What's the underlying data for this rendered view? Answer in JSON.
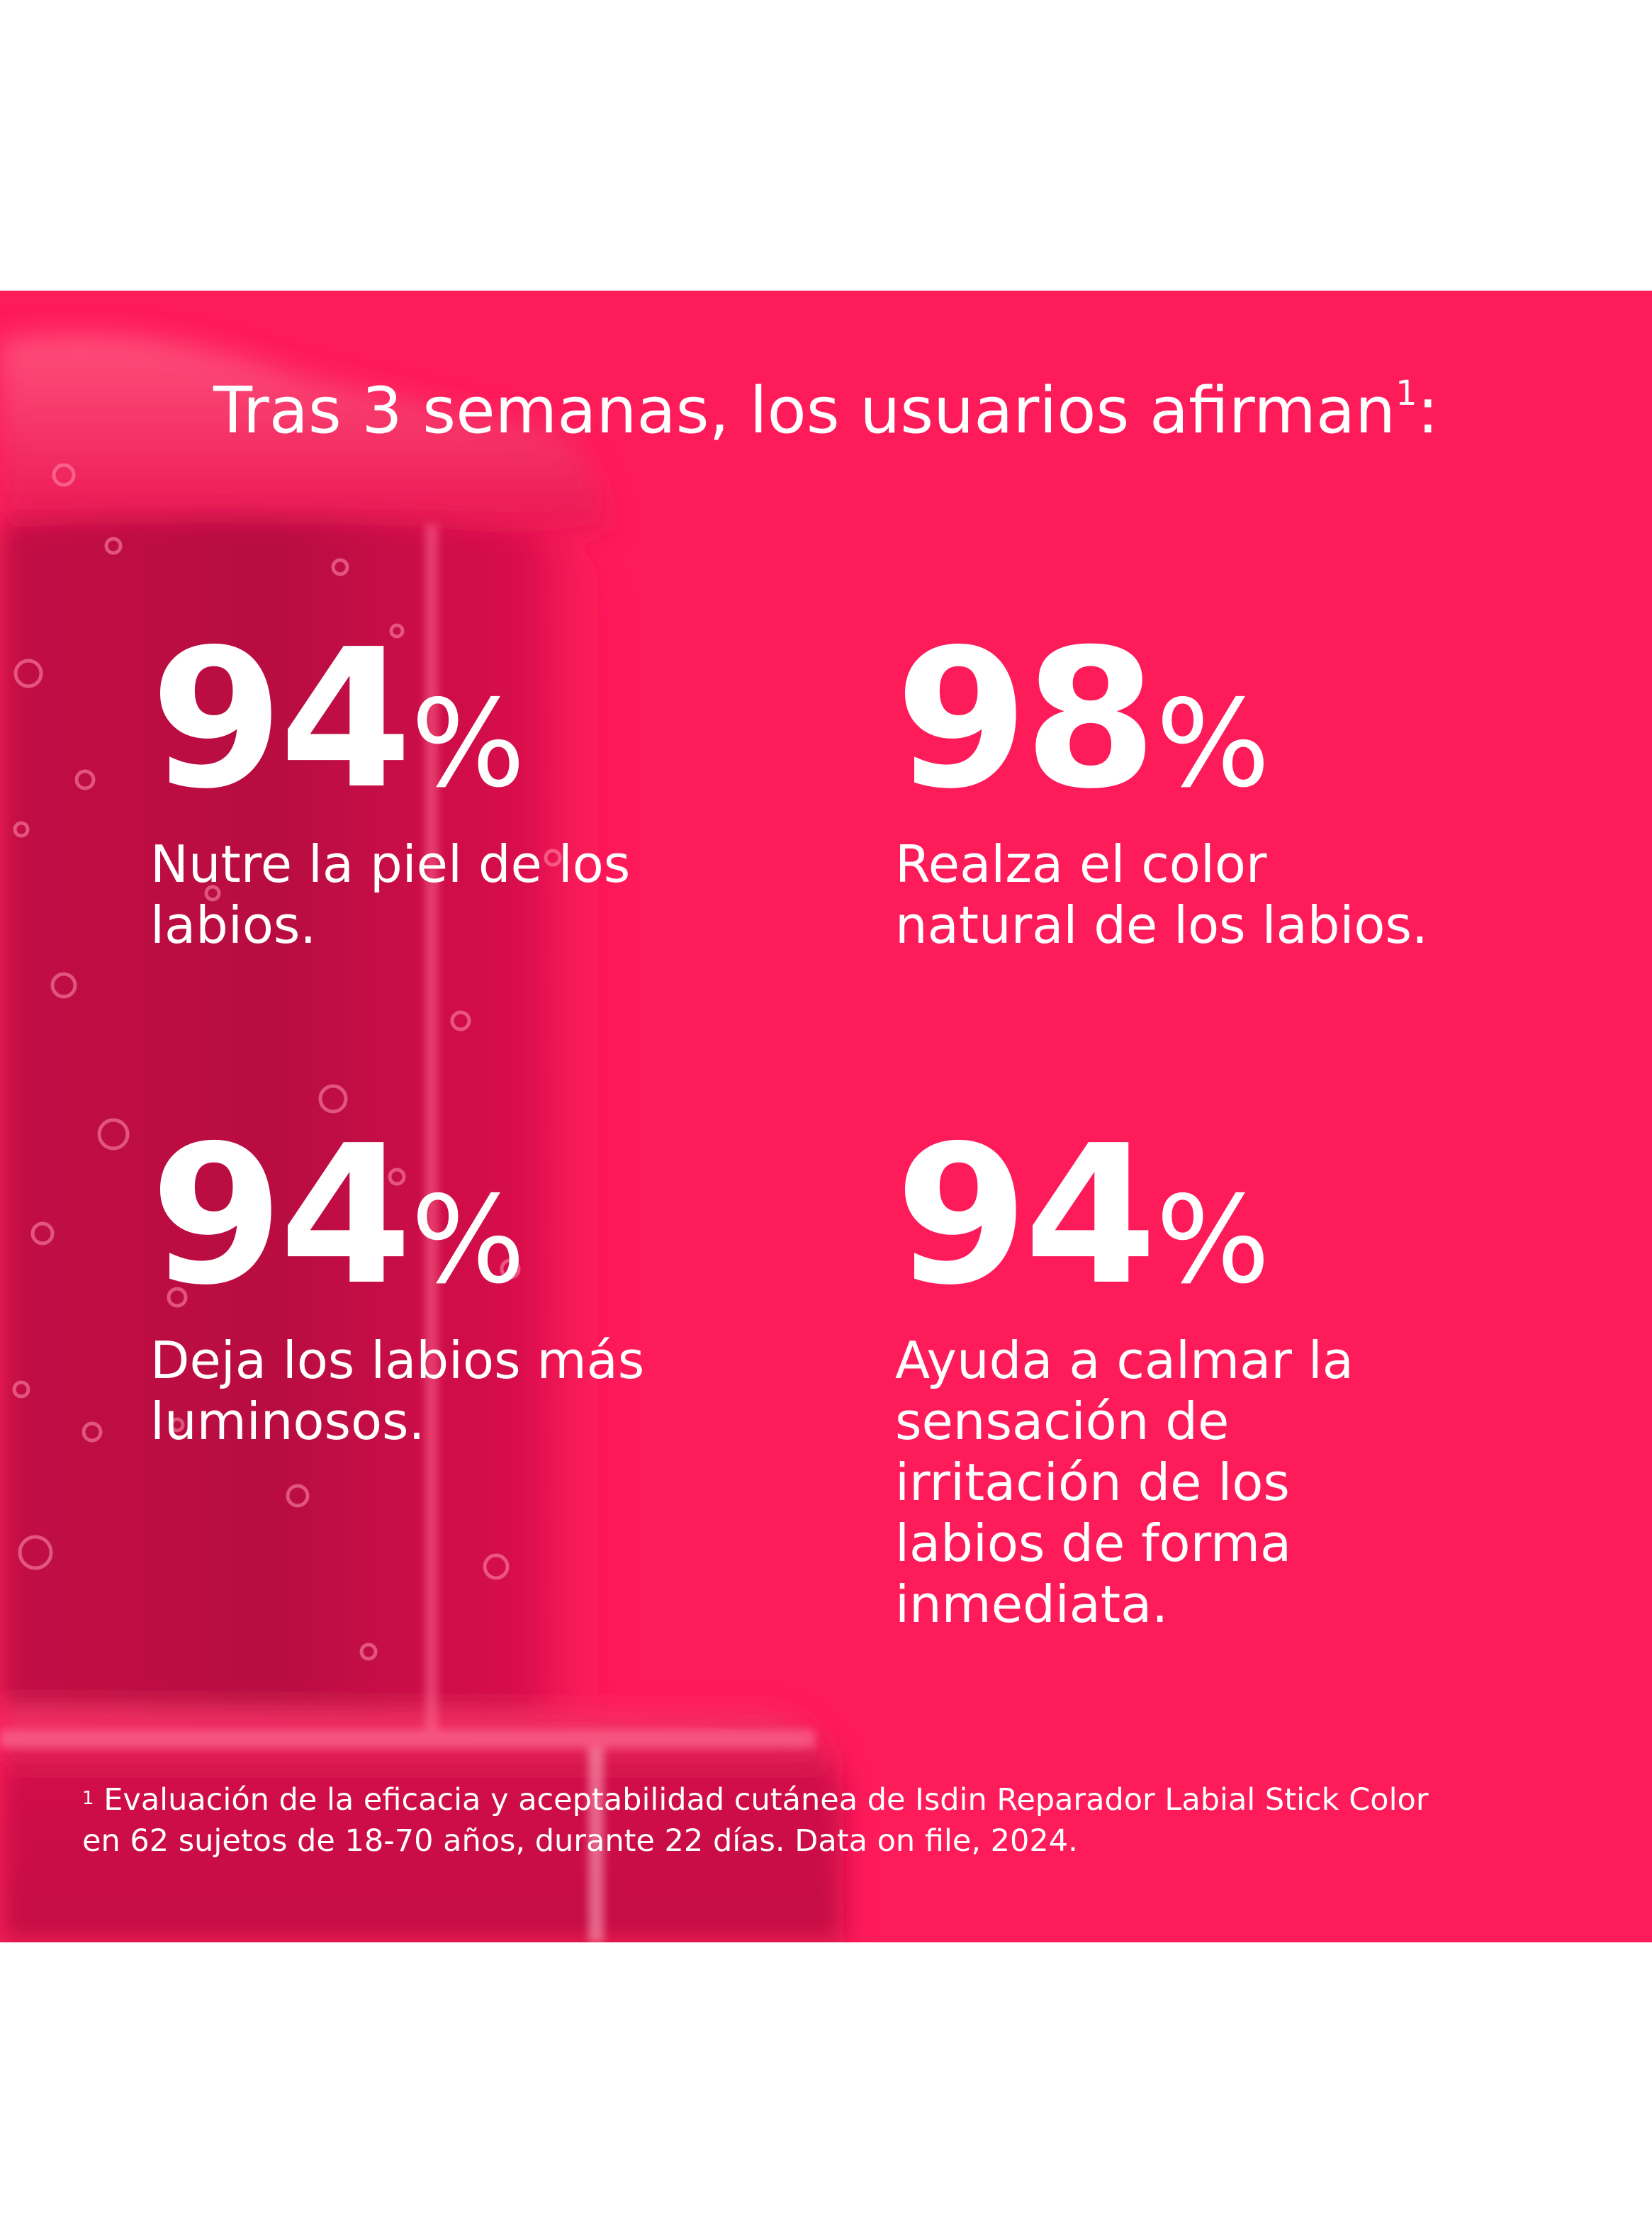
{
  "panel": {
    "background_color": "#fe1b5a",
    "image": "blurred-pink-lipstick-with-water-droplets"
  },
  "headline": {
    "text": "Tras 3 semanas, los usuarios afirman",
    "footnote_marker": "1",
    "suffix": ":"
  },
  "stats": [
    {
      "value": "94",
      "unit": "%",
      "desc_lines": [
        "Nutre la piel de los",
        "labios."
      ]
    },
    {
      "value": "98",
      "unit": "%",
      "desc_lines": [
        "Realza el color",
        "natural de los labios."
      ]
    },
    {
      "value": "94",
      "unit": "%",
      "desc_lines": [
        "Deja los labios más",
        "luminosos."
      ]
    },
    {
      "value": "94",
      "unit": "%",
      "desc_lines": [
        "Ayuda a calmar la",
        "sensación de",
        "irritación de los",
        "labios de forma",
        "inmediata."
      ]
    }
  ],
  "footnote": {
    "marker": "1",
    "line1": "Evaluación de la eficacia y aceptabilidad cutánea de Isdin Reparador Labial Stick Color",
    "line2": "en 62 sujetos de 18-70 años, durante 22 días. Data on file, 2024."
  }
}
